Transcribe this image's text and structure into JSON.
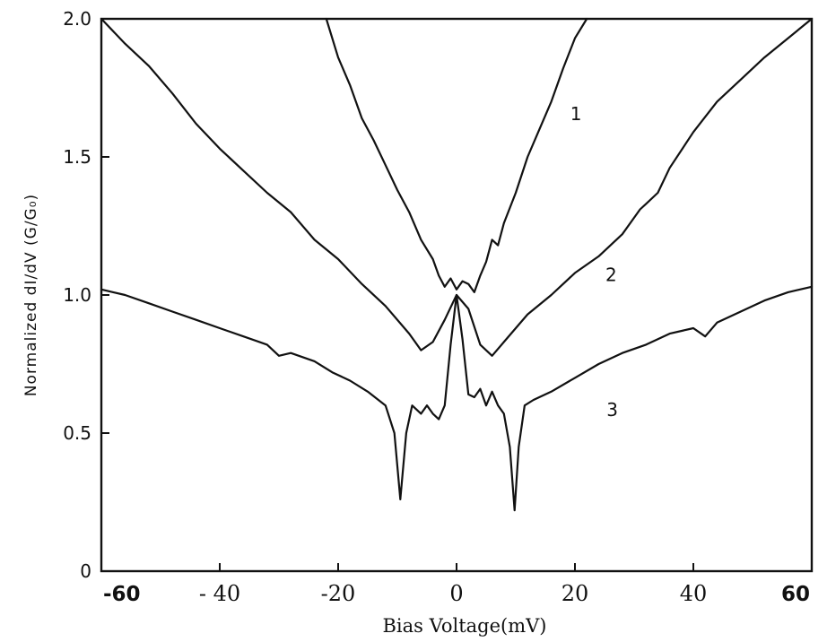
{
  "chart_data": {
    "type": "line",
    "title": "",
    "xlabel": "Bias Voltage(mV)",
    "ylabel": "Normalized dI/dV (G/G₀)",
    "xlim": [
      -60,
      60
    ],
    "ylim": [
      0,
      2.0
    ],
    "x_ticks": [
      -60,
      -40,
      -20,
      0,
      20,
      40,
      60
    ],
    "x_tick_labels": [
      "-60",
      "- 40",
      "-20",
      "0",
      "20",
      "40",
      "60"
    ],
    "y_ticks": [
      0,
      0.5,
      1.0,
      1.5,
      2.0
    ],
    "y_tick_labels": [
      "0",
      "0.5",
      "1.0",
      "1.5",
      "2.0"
    ],
    "grid": false,
    "legend": "none",
    "line_color": "#111111",
    "series": [
      {
        "label": "1",
        "x": [
          -22,
          -20,
          -18,
          -16,
          -14,
          -12,
          -10,
          -8,
          -6,
          -4,
          -3,
          -2,
          -1,
          0,
          1,
          2,
          3,
          4,
          5,
          6,
          7,
          8,
          10,
          12,
          14,
          16,
          18,
          20,
          22
        ],
        "y": [
          2.0,
          1.86,
          1.76,
          1.64,
          1.56,
          1.47,
          1.38,
          1.3,
          1.2,
          1.13,
          1.07,
          1.03,
          1.06,
          1.02,
          1.05,
          1.04,
          1.01,
          1.07,
          1.12,
          1.2,
          1.18,
          1.26,
          1.37,
          1.5,
          1.6,
          1.7,
          1.82,
          1.93,
          2.0
        ]
      },
      {
        "label": "2",
        "x": [
          -60,
          -56,
          -52,
          -48,
          -44,
          -40,
          -36,
          -32,
          -28,
          -24,
          -20,
          -16,
          -12,
          -8,
          -6,
          -4,
          -2,
          0,
          2,
          4,
          6,
          8,
          10,
          12,
          16,
          20,
          24,
          28,
          31,
          32,
          34,
          36,
          40,
          44,
          48,
          52,
          56,
          60
        ],
        "y": [
          2.0,
          1.91,
          1.83,
          1.73,
          1.62,
          1.53,
          1.45,
          1.37,
          1.3,
          1.2,
          1.13,
          1.04,
          0.96,
          0.86,
          0.8,
          0.83,
          0.91,
          1.0,
          0.95,
          0.82,
          0.78,
          0.83,
          0.88,
          0.93,
          1.0,
          1.08,
          1.14,
          1.22,
          1.31,
          1.33,
          1.37,
          1.46,
          1.59,
          1.7,
          1.78,
          1.86,
          1.93,
          2.0
        ]
      },
      {
        "label": "3",
        "x": [
          -60,
          -56,
          -52,
          -48,
          -44,
          -40,
          -36,
          -32,
          -30,
          -28,
          -24,
          -21,
          -18,
          -15,
          -12,
          -10.5,
          -9.5,
          -8.5,
          -7.5,
          -6,
          -5,
          -4,
          -3,
          -2,
          -1,
          0,
          1,
          2,
          3,
          4,
          5,
          6,
          7,
          8,
          9,
          9.8,
          10.5,
          11.5,
          13,
          16,
          20,
          24,
          28,
          32,
          36,
          40,
          42,
          44,
          48,
          52,
          56,
          60
        ],
        "y": [
          1.02,
          1.0,
          0.97,
          0.94,
          0.91,
          0.88,
          0.85,
          0.82,
          0.78,
          0.79,
          0.76,
          0.72,
          0.69,
          0.65,
          0.6,
          0.5,
          0.26,
          0.5,
          0.6,
          0.57,
          0.6,
          0.57,
          0.55,
          0.6,
          0.82,
          1.0,
          0.84,
          0.64,
          0.63,
          0.66,
          0.6,
          0.65,
          0.6,
          0.57,
          0.45,
          0.22,
          0.45,
          0.6,
          0.62,
          0.65,
          0.7,
          0.75,
          0.79,
          0.82,
          0.86,
          0.88,
          0.85,
          0.9,
          0.94,
          0.98,
          1.01,
          1.03
        ]
      }
    ]
  }
}
